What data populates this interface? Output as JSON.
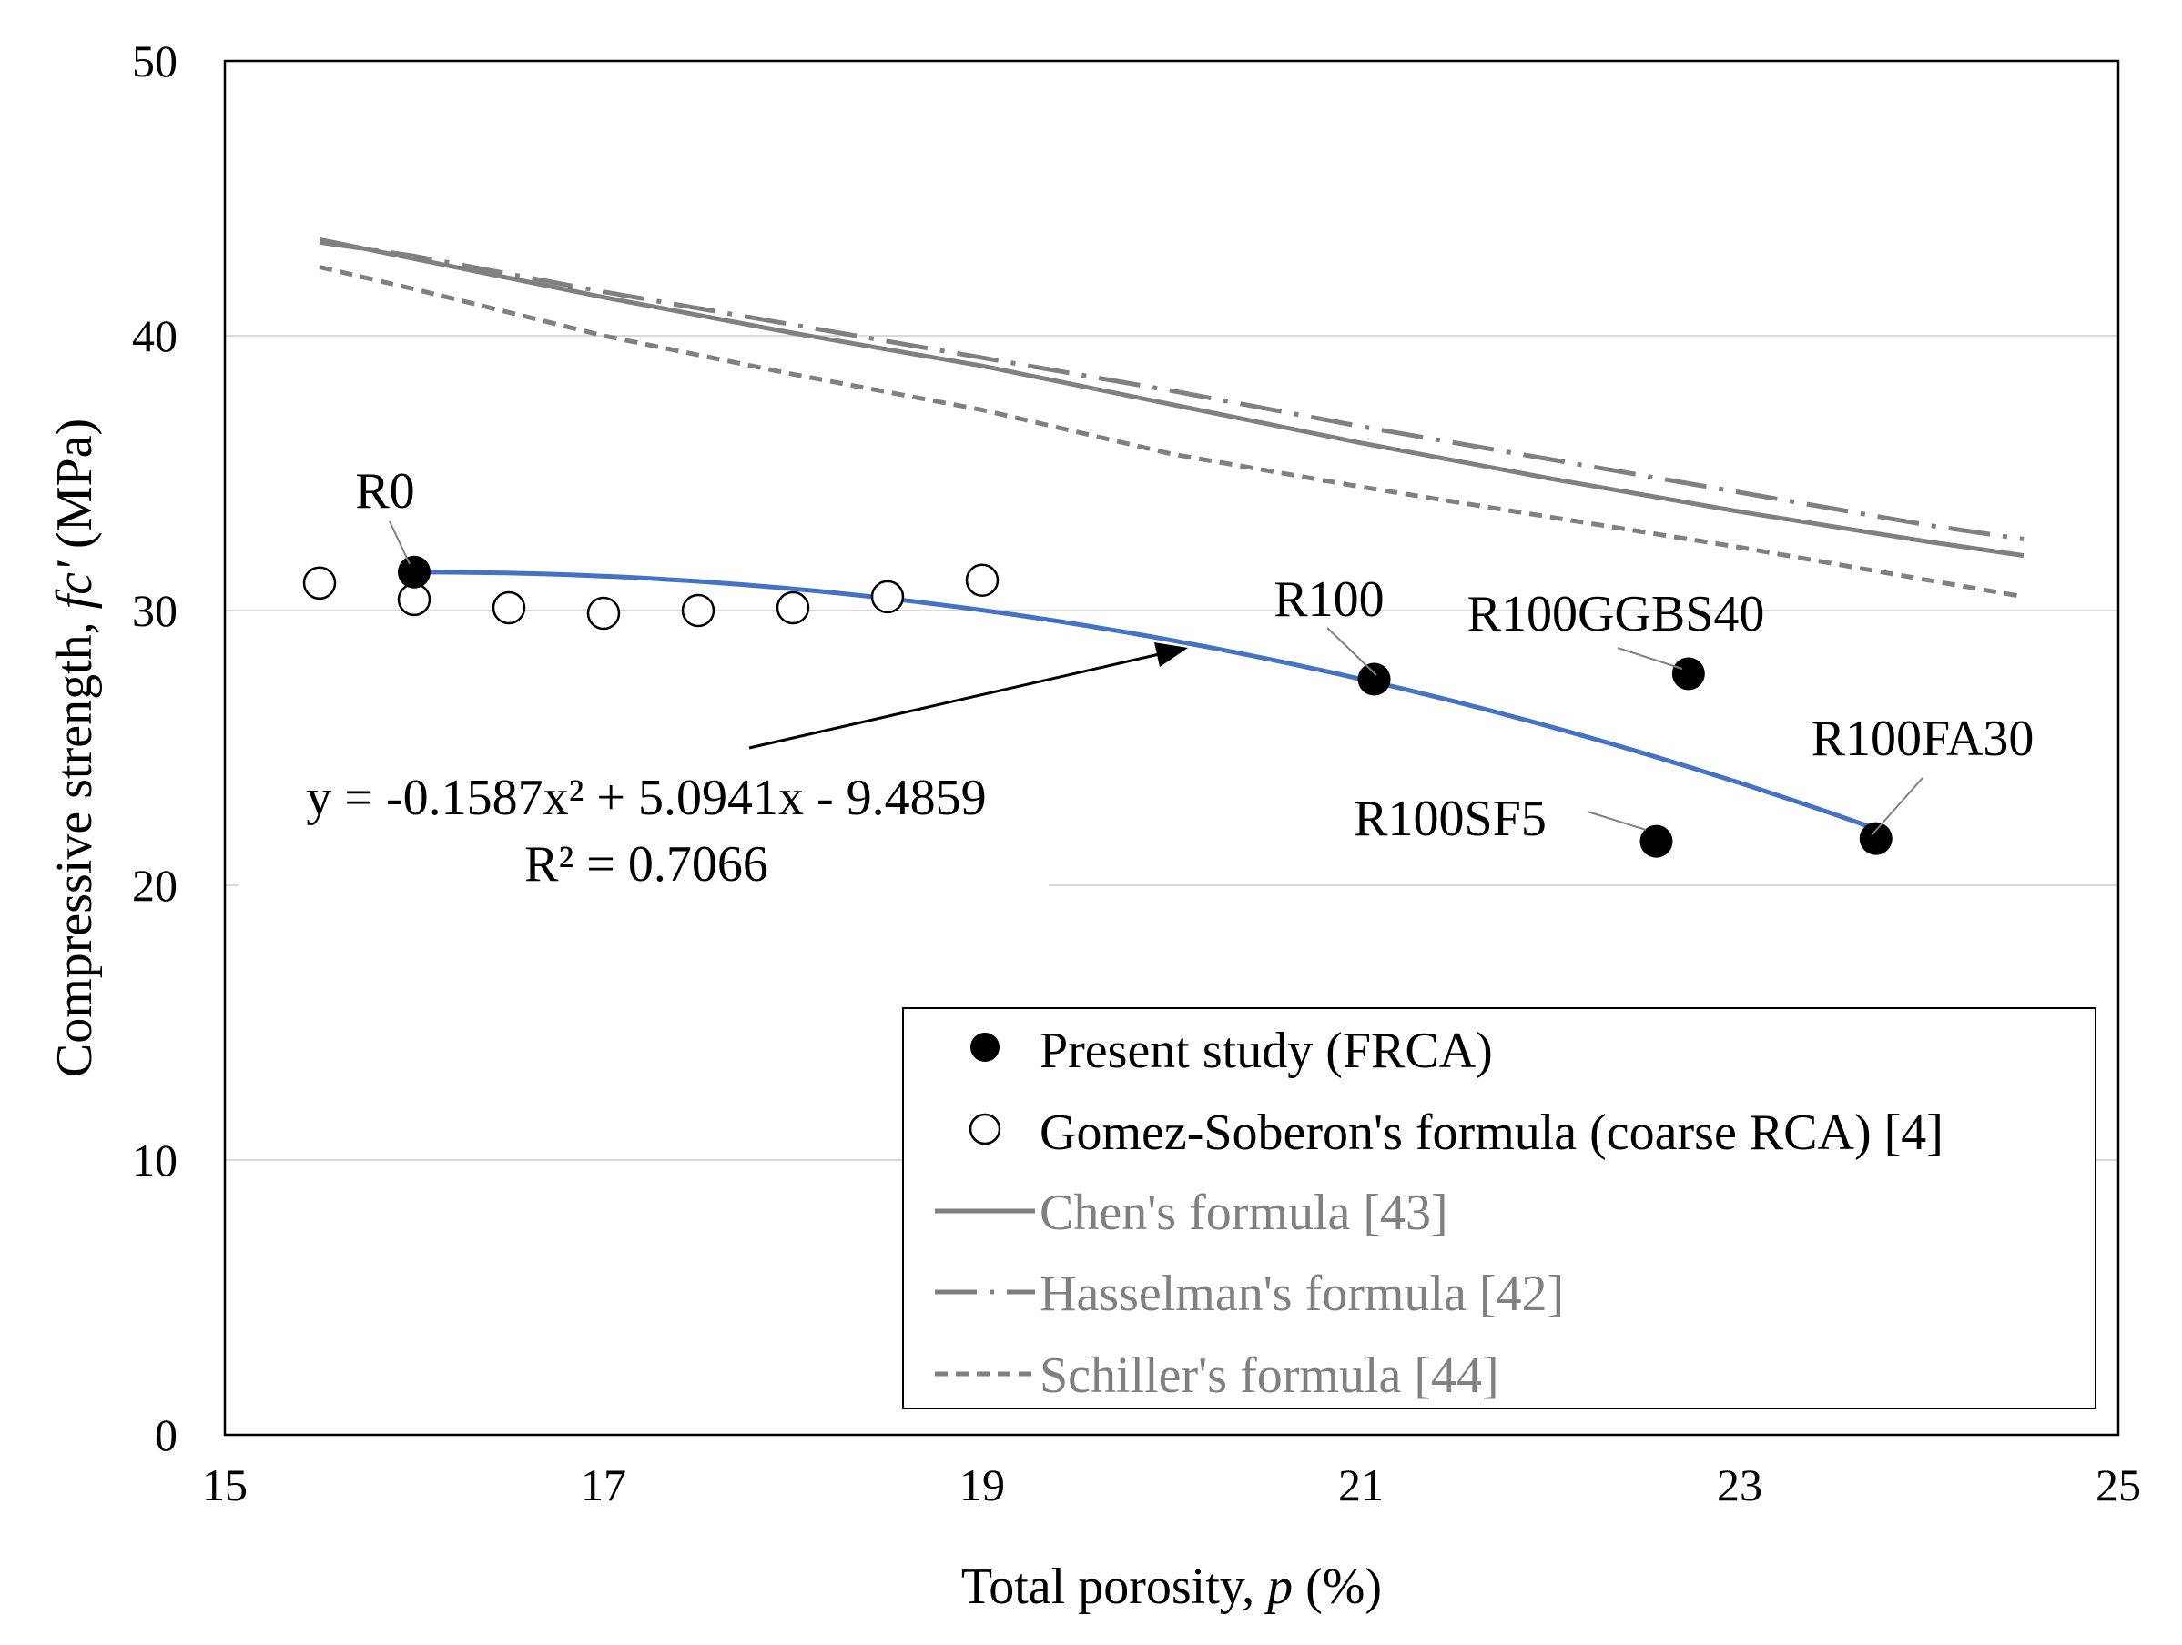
{
  "chart_data": {
    "type": "scatter",
    "xlabel": {
      "main": "Total porosity, ",
      "var": "p",
      "unit": " (%)"
    },
    "ylabel": {
      "main": "Compressive strength, ",
      "var": "fc'",
      "unit": " (MPa)"
    },
    "xlim": [
      15,
      25
    ],
    "ylim": [
      0,
      50
    ],
    "xticks": [
      15,
      17,
      19,
      21,
      23,
      25
    ],
    "yticks": [
      0,
      10,
      20,
      30,
      40,
      50
    ],
    "gridlines": "horizontal",
    "series": [
      {
        "name": "Present study (FRCA)",
        "marker": "filled-circle",
        "color": "#000000",
        "points": [
          {
            "label": "R0",
            "x": 16.0,
            "y": 31.4
          },
          {
            "label": "R100",
            "x": 21.07,
            "y": 27.5
          },
          {
            "label": "R100GGBS40",
            "x": 22.73,
            "y": 27.7
          },
          {
            "label": "R100SF5",
            "x": 22.56,
            "y": 21.6
          },
          {
            "label": "R100FA30",
            "x": 23.72,
            "y": 21.7
          }
        ]
      },
      {
        "name": "Gomez-Soberon's formula (coarse RCA) [4]",
        "marker": "open-circle",
        "color": "#000000",
        "points": [
          {
            "x": 15.5,
            "y": 31.0
          },
          {
            "x": 16.0,
            "y": 30.4
          },
          {
            "x": 16.5,
            "y": 30.1
          },
          {
            "x": 17.0,
            "y": 29.9
          },
          {
            "x": 17.5,
            "y": 30.0
          },
          {
            "x": 18.0,
            "y": 30.1
          },
          {
            "x": 18.5,
            "y": 30.5
          },
          {
            "x": 19.0,
            "y": 31.1
          }
        ]
      },
      {
        "name": "Chen's formula [43]",
        "line": "solid",
        "color": "#808080",
        "x": [
          15.5,
          16.0,
          17.0,
          18.0,
          19.0,
          20.0,
          21.0,
          22.0,
          23.0,
          24.0,
          24.5
        ],
        "y": [
          43.5,
          42.8,
          41.4,
          40.1,
          38.9,
          37.5,
          36.1,
          34.8,
          33.6,
          32.5,
          32.0
        ]
      },
      {
        "name": "Hasselman's formula [42]",
        "line": "dash-dot",
        "color": "#808080",
        "x": [
          15.5,
          16.0,
          17.0,
          18.0,
          19.0,
          20.0,
          21.0,
          22.0,
          23.0,
          24.0,
          24.5
        ],
        "y": [
          43.4,
          42.9,
          41.6,
          40.4,
          39.2,
          38.0,
          36.7,
          35.5,
          34.3,
          33.1,
          32.6
        ]
      },
      {
        "name": "Schiller's formula [44]",
        "line": "dashed",
        "color": "#808080",
        "x": [
          15.5,
          16.0,
          17.0,
          18.0,
          19.0,
          20.0,
          21.0,
          22.0,
          23.0,
          24.0,
          24.5
        ],
        "y": [
          42.5,
          41.7,
          40.0,
          38.6,
          37.3,
          35.7,
          34.5,
          33.4,
          32.3,
          31.1,
          30.5
        ]
      },
      {
        "name": "Polynomial trendline (Present study)",
        "line": "solid",
        "color": "#4472C4",
        "in_legend": false,
        "equation": {
          "a": -0.1587,
          "b": 5.0941,
          "c": -9.4859
        },
        "x_range": [
          16.0,
          23.72
        ]
      }
    ],
    "equation_label": {
      "line1": "y = -0.1587x² + 5.0941x - 9.4859",
      "line2": "R² = 0.7066"
    },
    "legend_position": "bottom-right"
  }
}
